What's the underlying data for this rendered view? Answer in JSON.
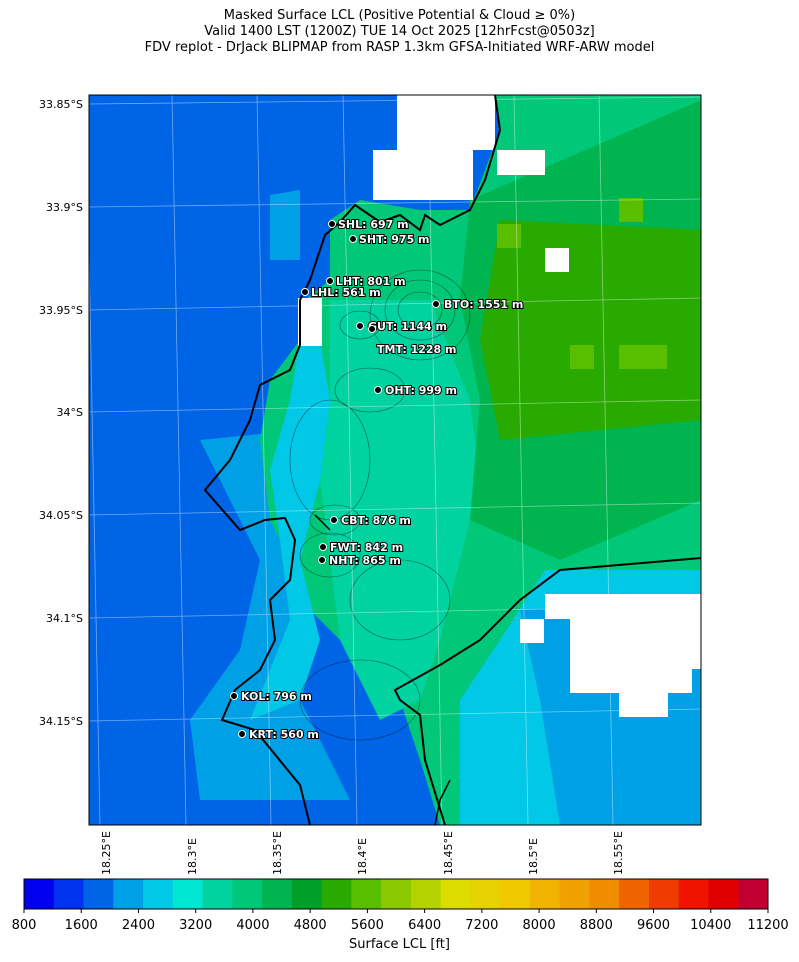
{
  "titles": {
    "line1": "Masked Surface LCL (Positive Potential & Cloud ≥ 0%)",
    "line2": "Valid 1400 LST (1200Z) TUE 14 Oct 2025 [12hrFcst@0503z]",
    "line3": "FDV replot - DrJack BLIPMAP from RASP 1.3km GFSA-Initiated WRF-ARW model"
  },
  "map": {
    "lat_labels": [
      "33.85°S",
      "33.9°S",
      "33.95°S",
      "34°S",
      "34.05°S",
      "34.1°S",
      "34.15°S"
    ],
    "lon_labels": [
      "18.25°E",
      "18.3°E",
      "18.35°E",
      "18.4°E",
      "18.45°E",
      "18.5°E",
      "18.55°E"
    ],
    "stations": [
      {
        "label": "SHL: 697 m"
      },
      {
        "label": "SHT: 975 m"
      },
      {
        "label": "LHT: 801 m"
      },
      {
        "label": "LHL: 561 m"
      },
      {
        "label": "BTO: 1551 m"
      },
      {
        "label": "GUT: 1144 m"
      },
      {
        "label": "TMT: 1228 m"
      },
      {
        "label": "OHT: 999 m"
      },
      {
        "label": "CBT: 876 m"
      },
      {
        "label": "FWT: 842 m"
      },
      {
        "label": "NHT: 865 m"
      },
      {
        "label": "KOL: 796 m"
      },
      {
        "label": "KRT: 560 m"
      }
    ]
  },
  "colorbar": {
    "label": "Surface LCL [ft]",
    "tick_labels": [
      "800",
      "1600",
      "2400",
      "3200",
      "4000",
      "4800",
      "5600",
      "6400",
      "7200",
      "8000",
      "8800",
      "9600",
      "10400",
      "11200"
    ],
    "colors": [
      "#0000f0",
      "#0032f0",
      "#0064e6",
      "#00a0e6",
      "#00c8e6",
      "#00e6d2",
      "#00d2a0",
      "#00c878",
      "#00b450",
      "#00a028",
      "#28aa00",
      "#5abe00",
      "#8cc800",
      "#b4d200",
      "#dcdc00",
      "#e6d200",
      "#f0c800",
      "#f0b400",
      "#f0a000",
      "#f08c00",
      "#f06400",
      "#f03c00",
      "#f01400",
      "#e00000",
      "#c00030"
    ]
  }
}
